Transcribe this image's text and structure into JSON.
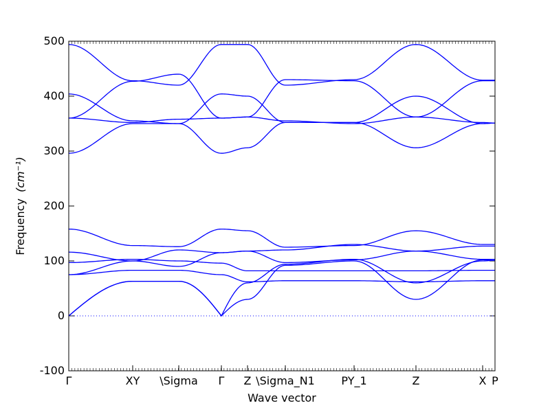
{
  "chart_data": {
    "type": "line",
    "xlabel": "Wave vector",
    "ylabel": "Frequency",
    "ylabel_unit": "(cm⁻¹)",
    "ylim": [
      -100,
      500
    ],
    "yticks": [
      -100,
      0,
      100,
      200,
      300,
      400,
      500
    ],
    "x_ticks": [
      {
        "label": "Γ",
        "pos": 0
      },
      {
        "label": "XY",
        "pos": 0.15
      },
      {
        "label": "\\Sigma",
        "pos": 0.2581
      },
      {
        "label": "Γ",
        "pos": 0.3581
      },
      {
        "label": "Z",
        "pos": 0.4194
      },
      {
        "label": "\\Sigma_N1",
        "pos": 0.5081
      },
      {
        "label": "PY_1",
        "pos": 0.6694
      },
      {
        "label": "Z",
        "pos": 0.8145
      },
      {
        "label": "X",
        "pos": 0.971
      },
      {
        "label": "P",
        "pos": 1.0
      }
    ],
    "zero_line": {
      "y": 0,
      "style": "dotted"
    },
    "color": "#0000ff",
    "series": [
      {
        "x": [
          0,
          0.15,
          0.2581,
          0.3581,
          0.4194,
          0.5081,
          0.6694,
          0.8145,
          0.971,
          1.0
        ],
        "values": [
          0,
          63,
          63,
          0,
          60,
          94,
          103,
          60,
          100,
          101
        ]
      },
      {
        "x": [
          0,
          0.15,
          0.2581,
          0.3581,
          0.4194,
          0.5081,
          0.6694,
          0.8145,
          0.971,
          1.0
        ],
        "values": [
          0,
          63,
          63,
          0,
          30,
          92,
          100,
          30,
          102,
          101
        ]
      },
      {
        "x": [
          0,
          0.15,
          0.2581,
          0.3581,
          0.4194,
          0.5081,
          0.6694,
          0.8145,
          0.971,
          1.0
        ],
        "values": [
          75,
          83,
          83,
          75,
          62,
          64,
          64,
          62,
          64,
          64
        ]
      },
      {
        "x": [
          0,
          0.15,
          0.2581,
          0.3581,
          0.4194,
          0.5081,
          0.6694,
          0.8145,
          0.971,
          1.0
        ],
        "values": [
          75,
          100,
          90,
          115,
          118,
          97,
          102,
          118,
          103,
          103
        ]
      },
      {
        "x": [
          0,
          0.15,
          0.2581,
          0.3581,
          0.4194,
          0.5081,
          0.6694,
          0.8145,
          0.971,
          1.0
        ],
        "values": [
          97,
          103,
          100,
          96,
          82,
          82,
          82,
          82,
          83,
          83
        ]
      },
      {
        "x": [
          0,
          0.15,
          0.2581,
          0.3581,
          0.4194,
          0.5081,
          0.6694,
          0.8145,
          0.971,
          1.0
        ],
        "values": [
          116,
          100,
          120,
          115,
          118,
          120,
          130,
          118,
          127,
          127
        ]
      },
      {
        "x": [
          0,
          0.15,
          0.2581,
          0.3581,
          0.4194,
          0.5081,
          0.6694,
          0.8145,
          0.971,
          1.0
        ],
        "values": [
          158,
          128,
          126,
          158,
          155,
          125,
          128,
          155,
          130,
          130
        ]
      },
      {
        "x": [
          0,
          0.15,
          0.2581,
          0.3581,
          0.4194,
          0.5081,
          0.6694,
          0.8145,
          0.971,
          1.0
        ],
        "values": [
          296,
          350,
          350,
          296,
          306,
          352,
          352,
          306,
          350,
          351
        ]
      },
      {
        "x": [
          0,
          0.15,
          0.2581,
          0.3581,
          0.4194,
          0.5081,
          0.6694,
          0.8145,
          0.971,
          1.0
        ],
        "values": [
          360,
          352,
          358,
          360,
          362,
          355,
          350,
          362,
          352,
          351
        ]
      },
      {
        "x": [
          0,
          0.15,
          0.2581,
          0.3581,
          0.4194,
          0.5081,
          0.6694,
          0.8145,
          0.971,
          1.0
        ],
        "values": [
          404,
          355,
          350,
          404,
          400,
          352,
          352,
          400,
          350,
          351
        ]
      },
      {
        "x": [
          0,
          0.15,
          0.2581,
          0.3581,
          0.4194,
          0.5081,
          0.6694,
          0.8145,
          0.971,
          1.0
        ],
        "values": [
          360,
          427,
          440,
          360,
          362,
          430,
          428,
          362,
          428,
          428
        ]
      },
      {
        "x": [
          0,
          0.15,
          0.2581,
          0.3581,
          0.4194,
          0.5081,
          0.6694,
          0.8145,
          0.971,
          1.0
        ],
        "values": [
          494,
          428,
          420,
          494,
          494,
          420,
          430,
          494,
          429,
          429
        ]
      }
    ]
  }
}
